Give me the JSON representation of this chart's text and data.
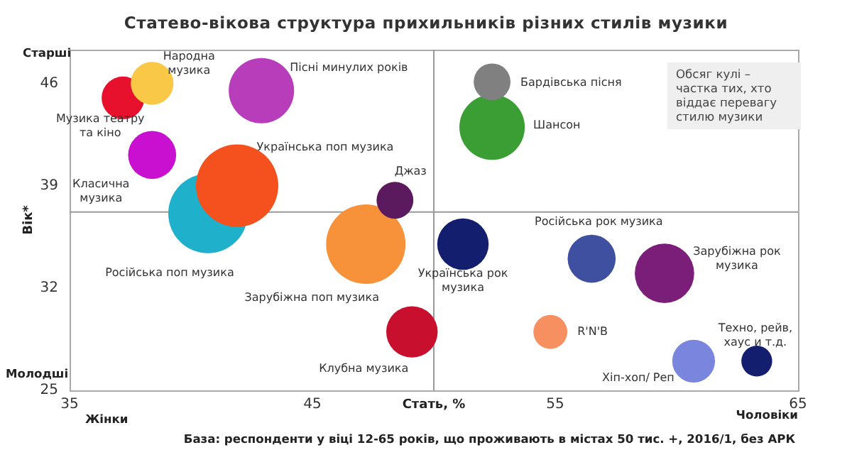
{
  "chart_data": {
    "type": "bubble",
    "title": "Статево-вікова структура прихильників різних стилів музики",
    "xlabel": "Стать, %",
    "ylabel": "Вік*",
    "xlim": [
      35,
      65
    ],
    "xticks": [
      35,
      45,
      55,
      65
    ],
    "ylim": [
      25,
      48.3
    ],
    "yticks": [
      25,
      32,
      39,
      46
    ],
    "grid": false,
    "legend": false,
    "ref_lines": [
      {
        "axis": "x",
        "value": 50,
        "color": "#999999"
      },
      {
        "axis": "y",
        "value": 37.2,
        "color": "#999999"
      }
    ],
    "annotations": [
      "Старші",
      "Молодші",
      "Жінки",
      "Чоловіки",
      "Обсяг кулі – частка тих, хто віддає перевагу стилю музики",
      "База: респонденти у віці 12-65 років, що проживають в містах 50 тис. +, 2016/1, без АРК"
    ],
    "series": [
      {
        "name": "Народна музика",
        "color": "#f9c846",
        "x": [
          38.4
        ],
        "values": [
          46.0
        ],
        "sizes": [
          0.27
        ]
      },
      {
        "name": "Музика театру та кіно",
        "color": "#e8112d",
        "x": [
          37.2
        ],
        "values": [
          45.0
        ],
        "sizes": [
          0.27
        ]
      },
      {
        "name": "Пісні минулих років",
        "color": "#b83dba",
        "x": [
          42.9
        ],
        "values": [
          45.5
        ],
        "sizes": [
          0.63
        ]
      },
      {
        "name": "Класична музика",
        "color": "#c90fd0",
        "x": [
          38.4
        ],
        "values": [
          41.1
        ],
        "sizes": [
          0.34
        ]
      },
      {
        "name": "Українська поп музика",
        "color": "#f4511e",
        "x": [
          41.9
        ],
        "values": [
          39.0
        ],
        "sizes": [
          1
        ]
      },
      {
        "name": "Російська поп музика",
        "color": "#1fb1cc",
        "x": [
          40.7
        ],
        "values": [
          37.1
        ],
        "sizes": [
          0.93
        ]
      },
      {
        "name": "Джаз",
        "color": "#5c1a5e",
        "x": [
          48.4
        ],
        "values": [
          38.0
        ],
        "sizes": [
          0.2
        ]
      },
      {
        "name": "Зарубіжна поп музика",
        "color": "#f7923a",
        "x": [
          47.2
        ],
        "values": [
          35.0
        ],
        "sizes": [
          0.93
        ]
      },
      {
        "name": "Клубна музика",
        "color": "#c8102e",
        "x": [
          49.1
        ],
        "values": [
          29.0
        ],
        "sizes": [
          0.39
        ]
      },
      {
        "name": "Бардівська пісня",
        "color": "#808080",
        "x": [
          52.4
        ],
        "values": [
          46.1
        ],
        "sizes": [
          0.2
        ]
      },
      {
        "name": "Шансон",
        "color": "#3a9e34",
        "x": [
          52.4
        ],
        "values": [
          43.0
        ],
        "sizes": [
          0.63
        ]
      },
      {
        "name": "Українська рок музика",
        "color": "#141e6e",
        "x": [
          51.2
        ],
        "values": [
          35.0
        ],
        "sizes": [
          0.39
        ]
      },
      {
        "name": "Російська рок музика",
        "color": "#4050a0",
        "x": [
          56.5
        ],
        "values": [
          34.0
        ],
        "sizes": [
          0.34
        ]
      },
      {
        "name": "Зарубіжна рок музика",
        "color": "#7b1e7a",
        "x": [
          59.5
        ],
        "values": [
          33.0
        ],
        "sizes": [
          0.52
        ]
      },
      {
        "name": "R'N'B",
        "color": "#f79060",
        "x": [
          54.8
        ],
        "values": [
          29.0
        ],
        "sizes": [
          0.17
        ]
      },
      {
        "name": "Хіп-хоп/ Реп",
        "color": "#7a86dd",
        "x": [
          60.7
        ],
        "values": [
          27.0
        ],
        "sizes": [
          0.27
        ]
      },
      {
        "name": "Техно, рейв, хаус и т.д.",
        "color": "#141e6e",
        "x": [
          63.3
        ],
        "values": [
          27.0
        ],
        "sizes": [
          0.14
        ]
      }
    ]
  }
}
